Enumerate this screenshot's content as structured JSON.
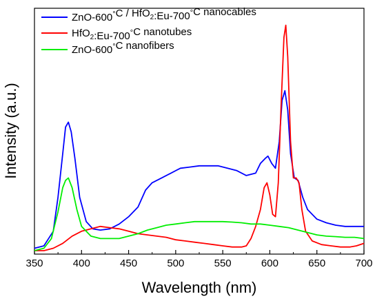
{
  "chart_data": {
    "type": "line",
    "xlabel": "Wavelength (nm)",
    "ylabel": "Intensity (a.u.)",
    "xlim": [
      350,
      700
    ],
    "ylim": [
      0,
      1.0
    ],
    "x_ticks": [
      "350",
      "400",
      "450",
      "500",
      "550",
      "600",
      "650",
      "700"
    ],
    "y_ticks_shown": false,
    "grid": false,
    "legend_position": "top-left",
    "series": [
      {
        "name_parts": [
          "ZnO-600",
          "°",
          "C / HfO",
          "2",
          ":Eu-700",
          "°",
          "C nanocables"
        ],
        "color": "#0000ff",
        "points": [
          [
            350,
            0.01
          ],
          [
            360,
            0.02
          ],
          [
            370,
            0.08
          ],
          [
            375,
            0.22
          ],
          [
            380,
            0.4
          ],
          [
            383,
            0.51
          ],
          [
            386,
            0.53
          ],
          [
            389,
            0.49
          ],
          [
            393,
            0.38
          ],
          [
            398,
            0.22
          ],
          [
            405,
            0.12
          ],
          [
            412,
            0.09
          ],
          [
            420,
            0.085
          ],
          [
            430,
            0.09
          ],
          [
            440,
            0.11
          ],
          [
            450,
            0.14
          ],
          [
            460,
            0.18
          ],
          [
            468,
            0.25
          ],
          [
            475,
            0.28
          ],
          [
            485,
            0.3
          ],
          [
            495,
            0.32
          ],
          [
            505,
            0.34
          ],
          [
            515,
            0.345
          ],
          [
            525,
            0.35
          ],
          [
            535,
            0.35
          ],
          [
            545,
            0.35
          ],
          [
            555,
            0.34
          ],
          [
            565,
            0.33
          ],
          [
            575,
            0.31
          ],
          [
            585,
            0.32
          ],
          [
            590,
            0.36
          ],
          [
            595,
            0.38
          ],
          [
            598,
            0.39
          ],
          [
            602,
            0.36
          ],
          [
            606,
            0.34
          ],
          [
            610,
            0.45
          ],
          [
            613,
            0.62
          ],
          [
            616,
            0.66
          ],
          [
            619,
            0.58
          ],
          [
            622,
            0.4
          ],
          [
            626,
            0.3
          ],
          [
            630,
            0.29
          ],
          [
            635,
            0.22
          ],
          [
            640,
            0.17
          ],
          [
            650,
            0.13
          ],
          [
            660,
            0.115
          ],
          [
            670,
            0.105
          ],
          [
            680,
            0.1
          ],
          [
            690,
            0.1
          ],
          [
            700,
            0.1
          ]
        ]
      },
      {
        "name_parts": [
          "HfO",
          "2",
          ":Eu-700",
          "°",
          "C nanotubes"
        ],
        "color": "#ff0000",
        "points": [
          [
            350,
            0.0
          ],
          [
            360,
            0.0
          ],
          [
            370,
            0.01
          ],
          [
            380,
            0.03
          ],
          [
            390,
            0.06
          ],
          [
            400,
            0.08
          ],
          [
            410,
            0.09
          ],
          [
            420,
            0.1
          ],
          [
            430,
            0.095
          ],
          [
            440,
            0.09
          ],
          [
            450,
            0.08
          ],
          [
            460,
            0.07
          ],
          [
            470,
            0.065
          ],
          [
            480,
            0.06
          ],
          [
            490,
            0.055
          ],
          [
            500,
            0.045
          ],
          [
            510,
            0.04
          ],
          [
            520,
            0.035
          ],
          [
            530,
            0.03
          ],
          [
            540,
            0.025
          ],
          [
            550,
            0.02
          ],
          [
            560,
            0.015
          ],
          [
            570,
            0.015
          ],
          [
            575,
            0.02
          ],
          [
            580,
            0.05
          ],
          [
            585,
            0.1
          ],
          [
            590,
            0.17
          ],
          [
            594,
            0.26
          ],
          [
            597,
            0.28
          ],
          [
            600,
            0.23
          ],
          [
            603,
            0.15
          ],
          [
            606,
            0.14
          ],
          [
            609,
            0.28
          ],
          [
            612,
            0.6
          ],
          [
            615,
            0.88
          ],
          [
            617,
            0.93
          ],
          [
            619,
            0.8
          ],
          [
            622,
            0.45
          ],
          [
            625,
            0.3
          ],
          [
            628,
            0.3
          ],
          [
            631,
            0.28
          ],
          [
            634,
            0.17
          ],
          [
            638,
            0.08
          ],
          [
            645,
            0.04
          ],
          [
            655,
            0.025
          ],
          [
            665,
            0.02
          ],
          [
            675,
            0.015
          ],
          [
            685,
            0.015
          ],
          [
            692,
            0.02
          ],
          [
            700,
            0.03
          ]
        ]
      },
      {
        "name_parts": [
          "ZnO-600",
          "°",
          "C nanofibers"
        ],
        "color": "#00ee00",
        "points": [
          [
            350,
            0.0
          ],
          [
            360,
            0.01
          ],
          [
            368,
            0.05
          ],
          [
            375,
            0.16
          ],
          [
            380,
            0.26
          ],
          [
            383,
            0.29
          ],
          [
            386,
            0.3
          ],
          [
            390,
            0.26
          ],
          [
            395,
            0.17
          ],
          [
            400,
            0.1
          ],
          [
            410,
            0.06
          ],
          [
            420,
            0.05
          ],
          [
            430,
            0.05
          ],
          [
            440,
            0.05
          ],
          [
            450,
            0.06
          ],
          [
            460,
            0.07
          ],
          [
            470,
            0.085
          ],
          [
            480,
            0.095
          ],
          [
            490,
            0.105
          ],
          [
            500,
            0.11
          ],
          [
            510,
            0.115
          ],
          [
            520,
            0.12
          ],
          [
            530,
            0.12
          ],
          [
            540,
            0.12
          ],
          [
            550,
            0.12
          ],
          [
            560,
            0.118
          ],
          [
            570,
            0.115
          ],
          [
            580,
            0.11
          ],
          [
            590,
            0.11
          ],
          [
            600,
            0.105
          ],
          [
            610,
            0.1
          ],
          [
            620,
            0.095
          ],
          [
            630,
            0.085
          ],
          [
            640,
            0.075
          ],
          [
            650,
            0.065
          ],
          [
            660,
            0.06
          ],
          [
            670,
            0.058
          ],
          [
            680,
            0.055
          ],
          [
            690,
            0.055
          ],
          [
            700,
            0.05
          ]
        ]
      }
    ]
  }
}
